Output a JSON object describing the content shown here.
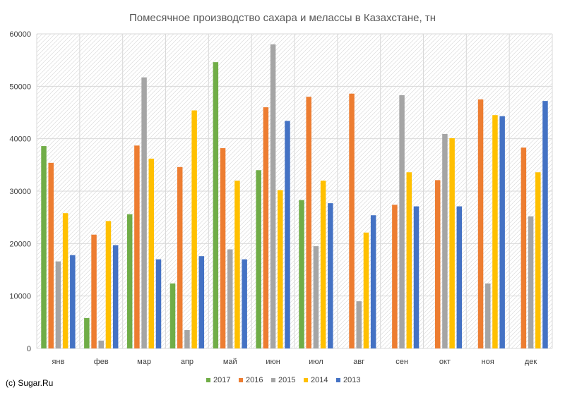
{
  "credit": "(c) Sugar.Ru",
  "colors": {
    "2017": "#70AD47",
    "2016": "#ED7D31",
    "2015": "#A5A5A5",
    "2014": "#FFC000",
    "2013": "#4472C4"
  },
  "chart_data": {
    "type": "bar",
    "title": "Помесячное производство сахара и мелассы в Казахстане, тн",
    "xlabel": "",
    "ylabel": "",
    "ylim": [
      0,
      60000
    ],
    "yticks": [
      0,
      10000,
      20000,
      30000,
      40000,
      50000,
      60000
    ],
    "grid": true,
    "legend_position": "bottom",
    "categories": [
      "янв",
      "фев",
      "мар",
      "апр",
      "май",
      "июн",
      "июл",
      "авг",
      "сен",
      "окт",
      "ноя",
      "дек"
    ],
    "series": [
      {
        "name": "2017",
        "color": "#70AD47",
        "values": [
          38600,
          5800,
          25600,
          12400,
          54600,
          34000,
          28300,
          null,
          null,
          null,
          null,
          null
        ]
      },
      {
        "name": "2016",
        "color": "#ED7D31",
        "values": [
          35400,
          21700,
          38700,
          34600,
          38200,
          46000,
          48000,
          48600,
          27400,
          32100,
          47500,
          38300
        ]
      },
      {
        "name": "2015",
        "color": "#A5A5A5",
        "values": [
          16600,
          1500,
          51700,
          3500,
          18900,
          58000,
          19500,
          9000,
          48300,
          40900,
          12400,
          25200
        ]
      },
      {
        "name": "2014",
        "color": "#FFC000",
        "values": [
          25800,
          24300,
          36200,
          45400,
          32000,
          30200,
          32000,
          22100,
          33600,
          40100,
          44500,
          33600
        ]
      },
      {
        "name": "2013",
        "color": "#4472C4",
        "values": [
          17800,
          19700,
          17000,
          17600,
          17000,
          43400,
          27700,
          25400,
          27100,
          27100,
          44300,
          47200
        ]
      }
    ]
  }
}
